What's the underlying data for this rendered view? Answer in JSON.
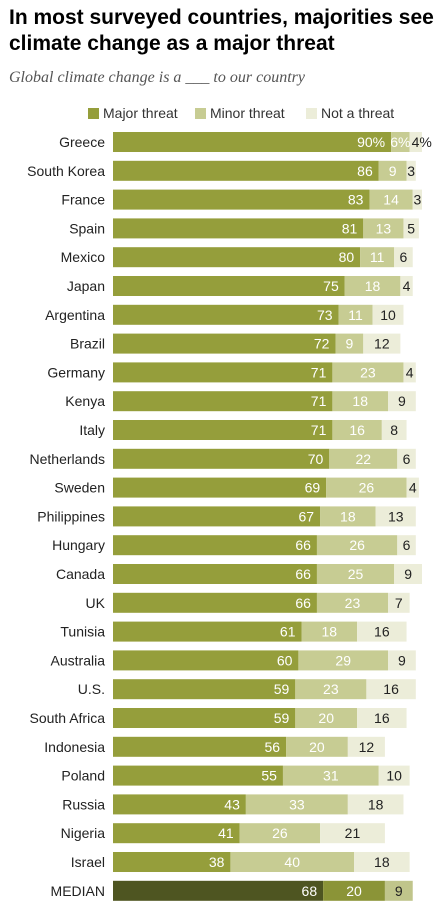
{
  "title": "In most surveyed countries, majorities see climate change as a major threat",
  "subtitle": "Global climate change is a ___ to our country",
  "colors": {
    "major": "#959e3b",
    "minor": "#c7cc93",
    "not": "#ecedd9",
    "median_major": "#4e5521",
    "median_minor": "#8b9437",
    "median_not": "#c0c58b"
  },
  "chart_data": {
    "type": "bar",
    "orientation": "horizontal",
    "stacked": true,
    "title": "In most surveyed countries, majorities see climate change as a major threat",
    "subtitle": "Global climate change is a ___ to our country",
    "legend_position": "top",
    "categories": [
      "Greece",
      "South Korea",
      "France",
      "Spain",
      "Mexico",
      "Japan",
      "Argentina",
      "Brazil",
      "Germany",
      "Kenya",
      "Italy",
      "Netherlands",
      "Sweden",
      "Philippines",
      "Hungary",
      "Canada",
      "UK",
      "Tunisia",
      "Australia",
      "U.S.",
      "South Africa",
      "Indonesia",
      "Poland",
      "Russia",
      "Nigeria",
      "Israel",
      "MEDIAN"
    ],
    "series": [
      {
        "name": "Major threat",
        "values": [
          90,
          86,
          83,
          81,
          80,
          75,
          73,
          72,
          71,
          71,
          71,
          70,
          69,
          67,
          66,
          66,
          66,
          61,
          60,
          59,
          59,
          56,
          55,
          43,
          41,
          38,
          68
        ]
      },
      {
        "name": "Minor threat",
        "values": [
          6,
          9,
          14,
          13,
          11,
          18,
          11,
          9,
          23,
          18,
          16,
          22,
          26,
          18,
          26,
          25,
          23,
          18,
          29,
          23,
          20,
          20,
          31,
          33,
          26,
          40,
          20
        ]
      },
      {
        "name": "Not a threat",
        "values": [
          4,
          3,
          3,
          5,
          6,
          4,
          10,
          12,
          4,
          9,
          8,
          6,
          4,
          13,
          6,
          9,
          7,
          16,
          9,
          16,
          16,
          12,
          10,
          18,
          21,
          18,
          9
        ]
      }
    ],
    "value_labels": [
      [
        "90%",
        "6%",
        "4%"
      ],
      [
        "86",
        "9",
        "3"
      ],
      [
        "83",
        "14",
        "3"
      ],
      [
        "81",
        "13",
        "5"
      ],
      [
        "80",
        "11",
        "6"
      ],
      [
        "75",
        "18",
        "4"
      ],
      [
        "73",
        "11",
        "10"
      ],
      [
        "72",
        "9",
        "12"
      ],
      [
        "71",
        "23",
        "4"
      ],
      [
        "71",
        "18",
        "9"
      ],
      [
        "71",
        "16",
        "8"
      ],
      [
        "70",
        "22",
        "6"
      ],
      [
        "69",
        "26",
        "4"
      ],
      [
        "67",
        "18",
        "13"
      ],
      [
        "66",
        "26",
        "6"
      ],
      [
        "66",
        "25",
        "9"
      ],
      [
        "66",
        "23",
        "7"
      ],
      [
        "61",
        "18",
        "16"
      ],
      [
        "60",
        "29",
        "9"
      ],
      [
        "59",
        "23",
        "16"
      ],
      [
        "59",
        "20",
        "16"
      ],
      [
        "56",
        "20",
        "12"
      ],
      [
        "55",
        "31",
        "10"
      ],
      [
        "43",
        "33",
        "18"
      ],
      [
        "41",
        "26",
        "21"
      ],
      [
        "38",
        "40",
        "18"
      ],
      [
        "68",
        "20",
        "9"
      ]
    ]
  }
}
